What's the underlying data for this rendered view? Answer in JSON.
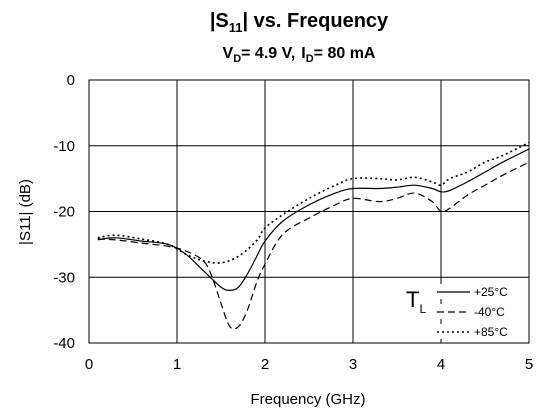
{
  "chart_data": {
    "type": "line",
    "title": {
      "prefix": "|S",
      "sub": "11",
      "suffix": "| vs. Frequency"
    },
    "subtitle": {
      "vd_prefix": "V",
      "vd_sub": "D",
      "vd_suffix": "= 4.9 V,",
      "id_prefix": "I",
      "id_sub": "D",
      "id_suffix": "= 80 mA"
    },
    "xlabel": "Frequency (GHz)",
    "ylabel": "|S11| (dB)",
    "xlim": [
      0,
      5
    ],
    "ylim": [
      -40,
      0
    ],
    "xticks": [
      0,
      1,
      2,
      3,
      4,
      5
    ],
    "yticks": [
      0,
      -10,
      -20,
      -30,
      -40
    ],
    "grid": true,
    "legend": {
      "placement": "bottom-right",
      "title_prefix": "T",
      "title_sub": "L"
    },
    "series": [
      {
        "name": "+25°C",
        "style": "solid",
        "x": [
          0.1,
          0.3,
          0.6,
          0.9,
          1.1,
          1.3,
          1.5,
          1.6,
          1.7,
          1.8,
          1.9,
          2.0,
          2.2,
          2.5,
          2.8,
          3.0,
          3.3,
          3.5,
          3.7,
          3.9,
          4.0,
          4.1,
          4.3,
          4.5,
          4.7,
          5.0
        ],
        "values": [
          -24.3,
          -24.0,
          -24.5,
          -25.0,
          -26.5,
          -29.0,
          -31.5,
          -32.0,
          -31.5,
          -29.5,
          -27.0,
          -24.5,
          -21.5,
          -19.0,
          -17.2,
          -16.5,
          -16.5,
          -16.3,
          -16.0,
          -16.5,
          -17.0,
          -16.8,
          -15.5,
          -14.0,
          -12.5,
          -10.5
        ]
      },
      {
        "name": "-40°C",
        "style": "dashed",
        "x": [
          0.1,
          0.3,
          0.6,
          0.9,
          1.1,
          1.3,
          1.4,
          1.5,
          1.6,
          1.7,
          1.8,
          1.9,
          2.0,
          2.2,
          2.5,
          2.8,
          3.0,
          3.3,
          3.5,
          3.7,
          3.9,
          4.0,
          4.1,
          4.3,
          4.5,
          4.7,
          5.0
        ],
        "values": [
          -24.2,
          -24.3,
          -24.8,
          -25.3,
          -26.0,
          -27.5,
          -30.0,
          -34.0,
          -37.5,
          -37.5,
          -35.0,
          -31.0,
          -28.0,
          -23.5,
          -21.0,
          -19.0,
          -18.0,
          -18.5,
          -18.0,
          -17.2,
          -18.5,
          -20.0,
          -19.5,
          -17.5,
          -16.0,
          -14.5,
          -12.5
        ]
      },
      {
        "name": "+85°C",
        "style": "dotted",
        "x": [
          0.1,
          0.3,
          0.6,
          0.9,
          1.1,
          1.3,
          1.5,
          1.7,
          1.9,
          2.0,
          2.2,
          2.5,
          2.8,
          3.0,
          3.3,
          3.5,
          3.7,
          3.9,
          4.0,
          4.1,
          4.3,
          4.5,
          4.7,
          5.0
        ],
        "values": [
          -24.0,
          -23.6,
          -24.2,
          -25.0,
          -26.5,
          -27.5,
          -27.8,
          -26.8,
          -24.5,
          -22.5,
          -20.5,
          -18.0,
          -16.0,
          -15.0,
          -15.0,
          -15.2,
          -14.8,
          -15.5,
          -16.0,
          -15.0,
          -14.0,
          -12.5,
          -11.5,
          -9.5
        ]
      }
    ]
  }
}
